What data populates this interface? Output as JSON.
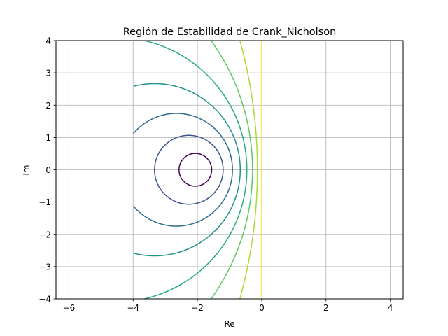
{
  "chart_data": {
    "type": "contour",
    "title": "Región de Estabilidad de Crank_Nicholson",
    "xlabel": "Re",
    "ylabel": "Im",
    "xlim": [
      -6.4,
      4.4
    ],
    "ylim": [
      -4,
      4
    ],
    "xticks": [
      -6,
      -4,
      -2,
      0,
      2,
      4
    ],
    "yticks": [
      -4,
      -3,
      -2,
      -1,
      0,
      1,
      2,
      3,
      4
    ],
    "xtick_labels": [
      "−6",
      "−4",
      "−2",
      "0",
      "2",
      "4"
    ],
    "ytick_labels": [
      "−4",
      "−3",
      "−2",
      "−1",
      "0",
      "1",
      "2",
      "3",
      "4"
    ],
    "grid": true,
    "data_domain_x": [
      -4,
      4
    ],
    "contour_levels": [
      {
        "level": 0.125,
        "color": "#440154"
      },
      {
        "level": 0.25,
        "color": "#3b528b"
      },
      {
        "level": 0.375,
        "color": "#2f6b8e"
      },
      {
        "level": 0.5,
        "color": "#21918c"
      },
      {
        "level": 0.625,
        "color": "#27ad81"
      },
      {
        "level": 0.75,
        "color": "#5ec962"
      },
      {
        "level": 0.875,
        "color": "#aadc32"
      },
      {
        "level": 1.0,
        "color": "#fde725"
      }
    ]
  }
}
